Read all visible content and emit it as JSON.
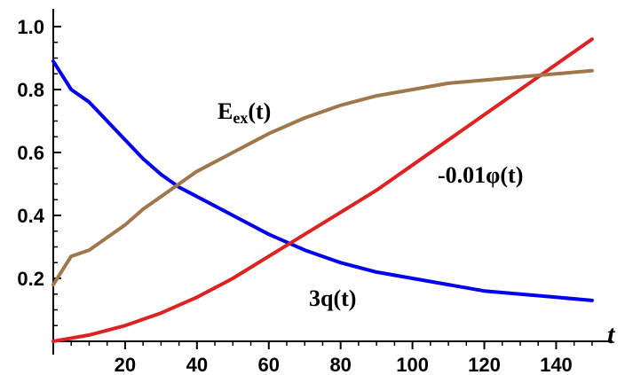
{
  "chart_data": {
    "type": "line",
    "title": "",
    "xlabel": "t",
    "ylabel": "",
    "xlim": [
      0,
      152
    ],
    "ylim": [
      0,
      1.0
    ],
    "x_ticks": [
      "20",
      "40",
      "60",
      "80",
      "100",
      "120",
      "140"
    ],
    "y_ticks": [
      "0.2",
      "0.4",
      "0.6",
      "0.8",
      "1.0"
    ],
    "grid": false,
    "series": [
      {
        "color": "#0000ee",
        "x": [
          0,
          5,
          10,
          15,
          20,
          25,
          30,
          35,
          40,
          50,
          60,
          70,
          80,
          90,
          100,
          110,
          120,
          130,
          140,
          150
        ],
        "values": [
          0.89,
          0.8,
          0.76,
          0.7,
          0.64,
          0.58,
          0.53,
          0.49,
          0.46,
          0.4,
          0.34,
          0.29,
          0.25,
          0.22,
          0.2,
          0.18,
          0.16,
          0.15,
          0.14,
          0.13
        ]
      },
      {
        "color": "#dd2222",
        "x": [
          0,
          10,
          20,
          30,
          40,
          50,
          60,
          70,
          80,
          90,
          100,
          110,
          120,
          130,
          140,
          150
        ],
        "values": [
          0.0,
          0.02,
          0.05,
          0.09,
          0.14,
          0.2,
          0.27,
          0.34,
          0.41,
          0.48,
          0.56,
          0.64,
          0.72,
          0.8,
          0.88,
          0.96
        ]
      },
      {
        "color": "#a0774a",
        "x": [
          0,
          5,
          10,
          15,
          20,
          25,
          30,
          35,
          40,
          50,
          60,
          70,
          80,
          90,
          100,
          110,
          120,
          130,
          140,
          150
        ],
        "values": [
          0.18,
          0.27,
          0.29,
          0.33,
          0.37,
          0.42,
          0.46,
          0.5,
          0.54,
          0.6,
          0.66,
          0.71,
          0.75,
          0.78,
          0.8,
          0.82,
          0.83,
          0.84,
          0.85,
          0.86
        ]
      }
    ],
    "annotations": [
      {
        "main": "E",
        "sub": "ex",
        "rest": "(t)"
      },
      {
        "text": "-0.01φ(t)"
      },
      {
        "text": "3q(t)"
      }
    ]
  }
}
